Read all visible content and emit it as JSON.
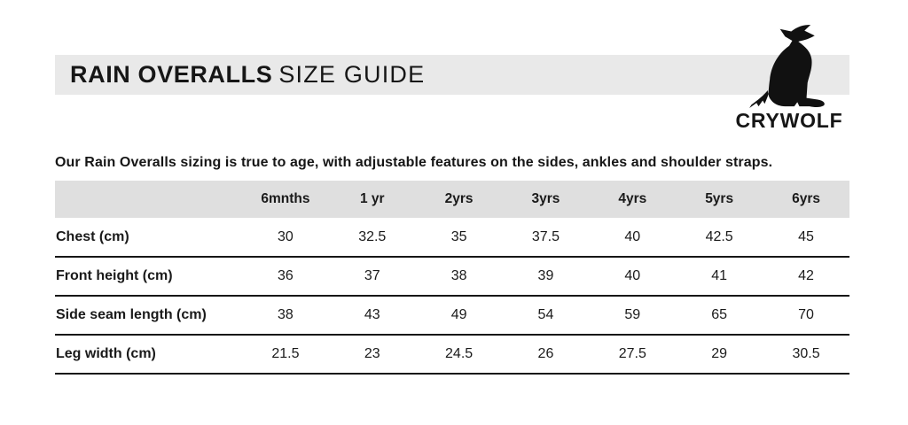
{
  "banner": {
    "title_primary": "RAIN OVERALLS",
    "title_secondary": "SIZE GUIDE"
  },
  "logo": {
    "brand": "CRYWOLF",
    "icon": "howling-wolf-silhouette"
  },
  "intro_text": "Our Rain Overalls sizing is true to age, with adjustable features on the sides, ankles and shoulder straps.",
  "chart_data": {
    "type": "table",
    "title": "RAIN OVERALLS SIZE GUIDE",
    "columns": [
      "",
      "6mnths",
      "1 yr",
      "2yrs",
      "3yrs",
      "4yrs",
      "5yrs",
      "6yrs"
    ],
    "rows": [
      {
        "label": "Chest (cm)",
        "values": [
          "30",
          "32.5",
          "35",
          "37.5",
          "40",
          "42.5",
          "45"
        ]
      },
      {
        "label": "Front height (cm)",
        "values": [
          "36",
          "37",
          "38",
          "39",
          "40",
          "41",
          "42"
        ]
      },
      {
        "label": "Side seam length (cm)",
        "values": [
          "38",
          "43",
          "49",
          "54",
          "59",
          "65",
          "70"
        ]
      },
      {
        "label": "Leg width (cm)",
        "values": [
          "21.5",
          "23",
          "24.5",
          "26",
          "27.5",
          "29",
          "30.5"
        ]
      }
    ]
  },
  "colors": {
    "banner_bg": "#e9e9e9",
    "table_header_bg": "#dfdfdf",
    "text": "#161616",
    "row_divider": "#161616",
    "logo_fill": "#111111"
  }
}
